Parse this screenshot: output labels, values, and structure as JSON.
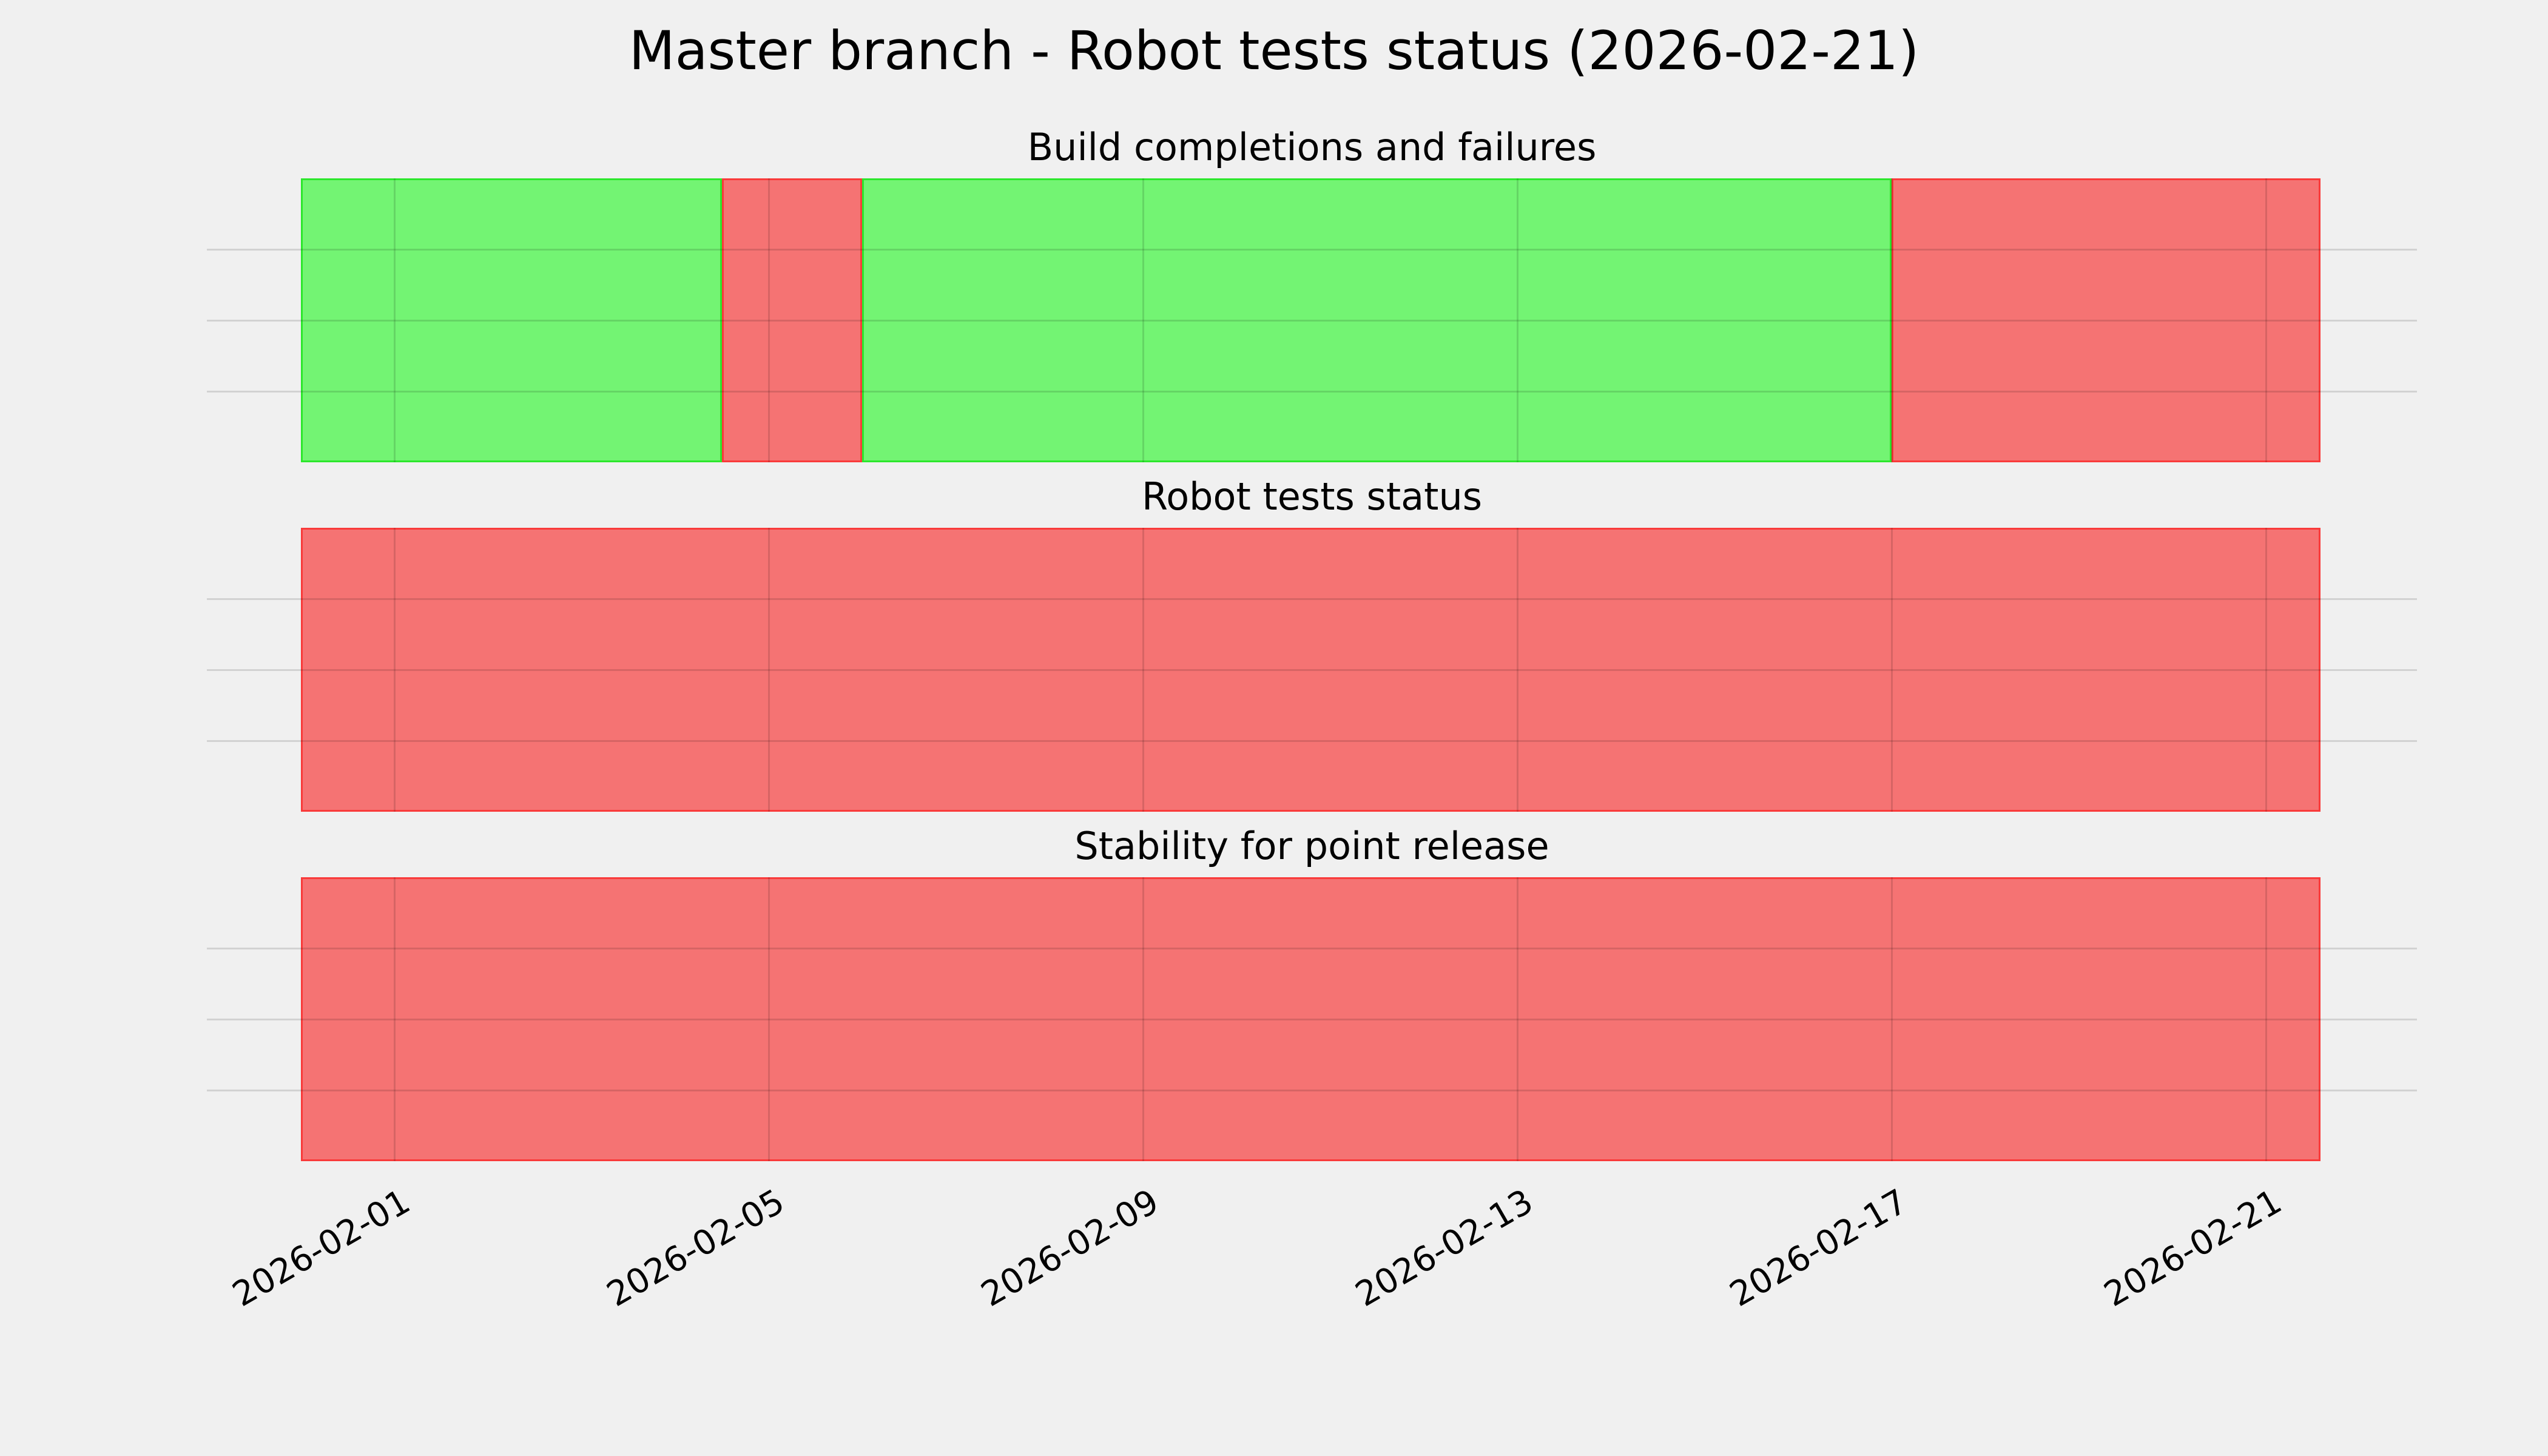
{
  "figure": {
    "title": "Master branch - Robot tests status (2026-02-21)",
    "background": "#f0f0f0"
  },
  "colors": {
    "success_fill": "#73f473",
    "success_edge": "#2ce72c",
    "failure_fill": "#f57373",
    "failure_edge": "#f93a3a",
    "grid_line": "rgba(0,0,0,0.125)",
    "text": "#000000"
  },
  "x_axis": {
    "tick_labels": [
      "2026-02-01",
      "2026-02-05",
      "2026-02-09",
      "2026-02-13",
      "2026-02-17",
      "2026-02-21"
    ],
    "tick_label_rotation_deg": 30,
    "range_start": "2026-01-30T00:00",
    "range_end": "2026-02-22T14:00",
    "data_start": "2026-01-31T00:00",
    "data_end": "2026-02-21T14:00"
  },
  "chart_data": [
    {
      "type": "area",
      "title": "Build completions and failures",
      "rows": 4,
      "grid": true,
      "segments": [
        {
          "start": "2026-01-31T00:00",
          "end": "2026-02-04T12:00",
          "status": "success"
        },
        {
          "start": "2026-02-04T12:00",
          "end": "2026-02-06T00:00",
          "status": "failure"
        },
        {
          "start": "2026-02-06T00:00",
          "end": "2026-02-17T00:00",
          "status": "success"
        },
        {
          "start": "2026-02-17T00:00",
          "end": "2026-02-21T14:00",
          "status": "failure"
        }
      ]
    },
    {
      "type": "area",
      "title": "Robot tests status",
      "rows": 4,
      "grid": true,
      "segments": [
        {
          "start": "2026-01-31T00:00",
          "end": "2026-02-21T14:00",
          "status": "failure"
        }
      ]
    },
    {
      "type": "area",
      "title": "Stability for point release",
      "rows": 4,
      "grid": true,
      "segments": [
        {
          "start": "2026-01-31T00:00",
          "end": "2026-02-21T14:00",
          "status": "failure"
        }
      ]
    }
  ]
}
